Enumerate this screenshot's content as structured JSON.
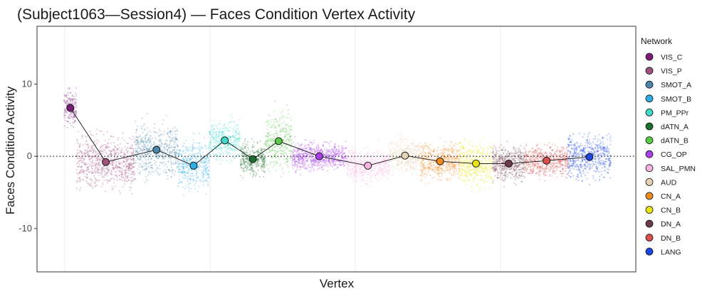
{
  "chart_data": {
    "type": "scatter",
    "title": "(Subject1063—Session4) — Faces Condition Vertex Activity",
    "xlabel": "Vertex",
    "ylabel": "Faces Condition Activity",
    "ylim": [
      -16,
      18
    ],
    "yticks": [
      10,
      0,
      -10
    ],
    "yticklabels": [
      "10",
      "0",
      "-10"
    ],
    "grid": true,
    "reference_line": 0,
    "legend": {
      "title": "Network",
      "position": "right"
    },
    "series": [
      {
        "name": "VIS_C",
        "color": "#7B1E7A",
        "mean": 6.7,
        "range": [
          2.5,
          11.5
        ]
      },
      {
        "name": "VIS_P",
        "color": "#A0507E",
        "mean": -0.8,
        "range": [
          -7,
          6
        ]
      },
      {
        "name": "SMOT_A",
        "color": "#4A86A8",
        "mean": 0.9,
        "range": [
          -4,
          9
        ]
      },
      {
        "name": "SMOT_B",
        "color": "#2DAEE5",
        "mean": -1.3,
        "range": [
          -6,
          6
        ]
      },
      {
        "name": "PM_PPr",
        "color": "#3FD9C9",
        "mean": 2.2,
        "range": [
          -2,
          7.5
        ]
      },
      {
        "name": "dATN_A",
        "color": "#1E6E2E",
        "mean": -0.4,
        "range": [
          -4.5,
          4
        ]
      },
      {
        "name": "dATN_B",
        "color": "#5BC84A",
        "mean": 2.1,
        "range": [
          -3,
          11
        ]
      },
      {
        "name": "CG_OP",
        "color": "#A93FEB",
        "mean": 0.0,
        "range": [
          -4,
          3
        ]
      },
      {
        "name": "SAL_PMN",
        "color": "#F7B6E2",
        "mean": -1.3,
        "range": [
          -6,
          2.5
        ]
      },
      {
        "name": "AUD",
        "color": "#E6D2B4",
        "mean": 0.1,
        "range": [
          -3.5,
          5
        ]
      },
      {
        "name": "CN_A",
        "color": "#F08A1D",
        "mean": -0.7,
        "range": [
          -5,
          4
        ]
      },
      {
        "name": "CN_B",
        "color": "#EAE50E",
        "mean": -1.0,
        "range": [
          -6.5,
          5
        ]
      },
      {
        "name": "DN_A",
        "color": "#6E3B4A",
        "mean": -1.0,
        "range": [
          -5,
          3.5
        ]
      },
      {
        "name": "DN_B",
        "color": "#D9504E",
        "mean": -0.6,
        "range": [
          -5,
          3
        ]
      },
      {
        "name": "LANG",
        "color": "#1E47E0",
        "mean": -0.1,
        "range": [
          -4,
          7
        ]
      }
    ]
  }
}
